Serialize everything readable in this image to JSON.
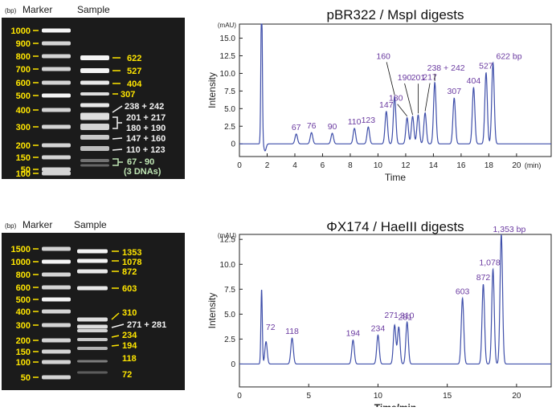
{
  "colors": {
    "gel_bg": "#1b1b1b",
    "gel_label": "#ffe600",
    "gel_marker_text": "#f0f0f0",
    "gel_bp_text": "#2a2a2a",
    "gel_header": "#1a1a1a",
    "gel_white_label": "#f2f2f2",
    "gel_green_label": "#bfe6b4",
    "chrom_line": "#3f4faa",
    "peak_label": "#6a3aa0",
    "axis": "#222222"
  },
  "gels": [
    {
      "id": "top",
      "header_unit": "(bp)",
      "header_marker": "Marker",
      "header_sample": "Sample",
      "ladder": [
        {
          "bp": 1000,
          "label": "1000"
        },
        {
          "bp": 900,
          "label": "900"
        },
        {
          "bp": 800,
          "label": "800"
        },
        {
          "bp": 700,
          "label": "700"
        },
        {
          "bp": 600,
          "label": "600"
        },
        {
          "bp": 500,
          "label": "500"
        },
        {
          "bp": 400,
          "label": "400"
        },
        {
          "bp": 300,
          "label": "300"
        },
        {
          "bp": 200,
          "label": "200"
        },
        {
          "bp": 150,
          "label": "150"
        },
        {
          "bp": 100,
          "label": "100"
        },
        {
          "bp": 50,
          "label": "50"
        }
      ],
      "sample_labels": [
        {
          "text": "622",
          "color": "yellow"
        },
        {
          "text": "527",
          "color": "yellow"
        },
        {
          "text": "404",
          "color": "yellow"
        },
        {
          "text": "307",
          "color": "yellow"
        },
        {
          "text": "238 + 242",
          "color": "white"
        },
        {
          "text": "201 + 217",
          "color": "white"
        },
        {
          "text": "180 + 190",
          "color": "white"
        },
        {
          "text": "147 + 160",
          "color": "white"
        },
        {
          "text": "110 + 123",
          "color": "white"
        },
        {
          "text": "67 - 90",
          "color": "green"
        },
        {
          "text": "(3 DNAs)",
          "color": "green"
        }
      ]
    },
    {
      "id": "bottom",
      "header_unit": "(bp)",
      "header_marker": "Marker",
      "header_sample": "Sample",
      "ladder": [
        {
          "bp": 1500,
          "label": "1500"
        },
        {
          "bp": 1000,
          "label": "1000"
        },
        {
          "bp": 800,
          "label": "800"
        },
        {
          "bp": 600,
          "label": "600"
        },
        {
          "bp": 500,
          "label": "500"
        },
        {
          "bp": 400,
          "label": "400"
        },
        {
          "bp": 300,
          "label": "300"
        },
        {
          "bp": 200,
          "label": "200"
        },
        {
          "bp": 150,
          "label": "150"
        },
        {
          "bp": 100,
          "label": "100"
        },
        {
          "bp": 50,
          "label": "50"
        }
      ],
      "sample_labels": [
        {
          "text": "1353",
          "color": "yellow"
        },
        {
          "text": "1078",
          "color": "yellow"
        },
        {
          "text": "872",
          "color": "yellow"
        },
        {
          "text": "603",
          "color": "yellow"
        },
        {
          "text": "310",
          "color": "yellow"
        },
        {
          "text": "271 + 281",
          "color": "white"
        },
        {
          "text": "234",
          "color": "yellow"
        },
        {
          "text": "194",
          "color": "yellow"
        },
        {
          "text": "118",
          "color": "yellow"
        },
        {
          "text": "72",
          "color": "yellow"
        }
      ]
    }
  ],
  "chart_data": [
    {
      "type": "line",
      "title": "pBR322 / MspI digests",
      "xlabel": "Time",
      "ylabel": "Intensity",
      "y_unit_label": "(mAU)",
      "x_unit_label": "(min)",
      "xlim": [
        0,
        22.5
      ],
      "ylim": [
        -1.8,
        17
      ],
      "x_ticks": [
        0,
        2,
        4,
        6,
        8,
        10,
        12,
        14,
        16,
        18,
        20
      ],
      "y_ticks": [
        0,
        2.5,
        5,
        7.5,
        10,
        12.5,
        15
      ],
      "y_tick_labels": [
        "0",
        "2.5",
        "5.0",
        "7.5",
        "10.0",
        "12.5",
        "15.0"
      ],
      "injection_peak": {
        "x": 1.6,
        "y": 22
      },
      "peaks": [
        {
          "label": "67",
          "x": 4.1,
          "y": 1.4
        },
        {
          "label": "76",
          "x": 5.2,
          "y": 1.6
        },
        {
          "label": "90",
          "x": 6.7,
          "y": 1.5
        },
        {
          "label": "110",
          "x": 8.3,
          "y": 2.2
        },
        {
          "label": "123",
          "x": 9.3,
          "y": 2.4
        },
        {
          "label": "147",
          "x": 10.6,
          "y": 4.6
        },
        {
          "label": "160",
          "x": 11.2,
          "y": 6.7
        },
        {
          "label": "180",
          "x": 12.1,
          "y": 3.7
        },
        {
          "label": "190",
          "x": 12.5,
          "y": 3.9
        },
        {
          "label": "201",
          "x": 12.9,
          "y": 4.1
        },
        {
          "label": "217",
          "x": 13.4,
          "y": 4.4
        },
        {
          "label": "238 + 242",
          "x": 14.1,
          "y": 8.7
        },
        {
          "label": "307",
          "x": 15.5,
          "y": 6.5
        },
        {
          "label": "404",
          "x": 16.9,
          "y": 8.0
        },
        {
          "label": "527",
          "x": 17.8,
          "y": 10.1
        },
        {
          "label": "622 bp",
          "x": 18.3,
          "y": 11.5
        }
      ]
    },
    {
      "type": "line",
      "title": "ΦX174 / HaeIII digests",
      "xlabel": "Time/min",
      "ylabel": "Intensity",
      "y_unit_label": "(mAU)",
      "xlim": [
        0,
        22.5
      ],
      "ylim": [
        -2.3,
        13
      ],
      "x_ticks": [
        0,
        5,
        10,
        15,
        20
      ],
      "y_ticks": [
        0,
        2.5,
        5,
        7.5,
        10,
        12.5
      ],
      "y_tick_labels": [
        "0",
        "2.5",
        "5.0",
        "7.5",
        "10.0",
        "12.5"
      ],
      "injection_peak": {
        "x": 1.6,
        "y": 7.5
      },
      "peaks": [
        {
          "label": "72",
          "x": 1.9,
          "y": 3.0
        },
        {
          "label": "118",
          "x": 3.8,
          "y": 2.6
        },
        {
          "label": "194",
          "x": 8.2,
          "y": 2.4
        },
        {
          "label": "234",
          "x": 10.0,
          "y": 2.9
        },
        {
          "label": "271",
          "x": 11.2,
          "y": 3.9
        },
        {
          "label": "281",
          "x": 11.5,
          "y": 3.7
        },
        {
          "label": "310",
          "x": 12.1,
          "y": 4.2
        },
        {
          "label": "603",
          "x": 16.1,
          "y": 6.6
        },
        {
          "label": "872",
          "x": 17.6,
          "y": 8.0
        },
        {
          "label": "1,078",
          "x": 18.3,
          "y": 9.5
        },
        {
          "label": "1,353 bp",
          "x": 18.9,
          "y": 13.0
        }
      ]
    }
  ]
}
